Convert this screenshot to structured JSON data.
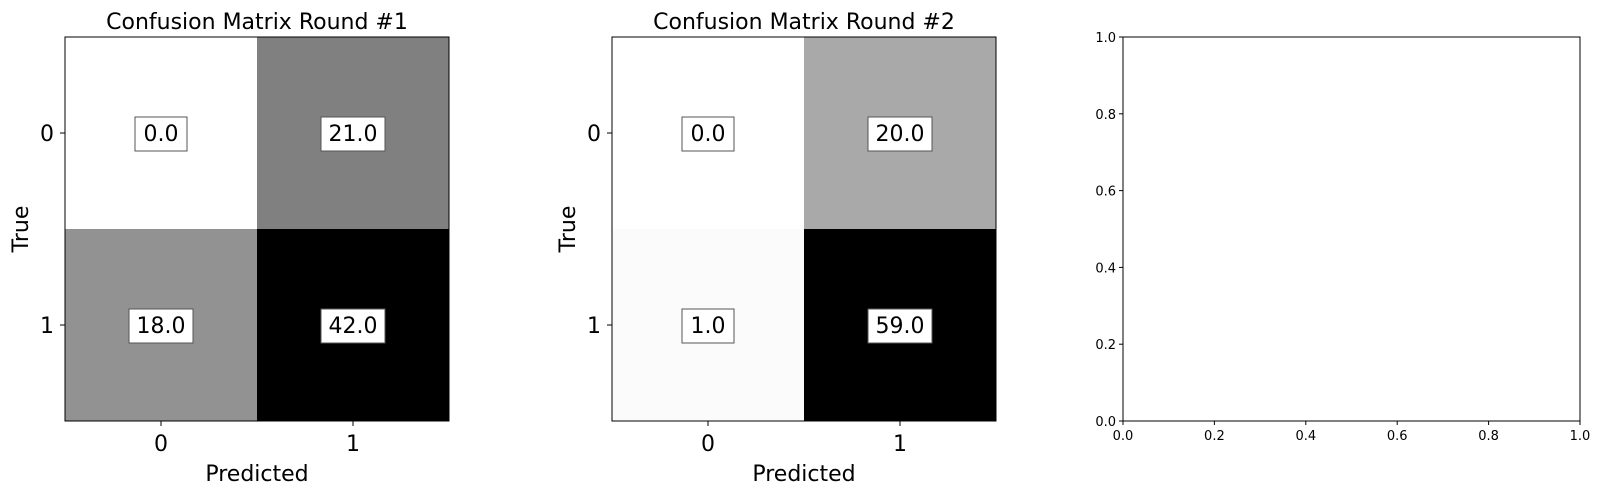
{
  "chart_data": [
    {
      "type": "heatmap",
      "title": "Confusion Matrix Round #1",
      "xlabel": "Predicted",
      "ylabel": "True",
      "x_ticks": [
        "0",
        "1"
      ],
      "y_ticks": [
        "0",
        "1"
      ],
      "colormap": "gray_r",
      "cells": [
        [
          0.0,
          21.0
        ],
        [
          18.0,
          42.0
        ]
      ],
      "cell_labels": [
        [
          "0.0",
          "21.0"
        ],
        [
          "18.0",
          "42.0"
        ]
      ]
    },
    {
      "type": "heatmap",
      "title": "Confusion Matrix Round #2",
      "xlabel": "Predicted",
      "ylabel": "True",
      "x_ticks": [
        "0",
        "1"
      ],
      "y_ticks": [
        "0",
        "1"
      ],
      "colormap": "gray_r",
      "cells": [
        [
          0.0,
          20.0
        ],
        [
          1.0,
          59.0
        ]
      ],
      "cell_labels": [
        [
          "0.0",
          "20.0"
        ],
        [
          "1.0",
          "59.0"
        ]
      ]
    },
    {
      "type": "scatter",
      "title": "",
      "xlabel": "",
      "ylabel": "",
      "xlim": [
        0.0,
        1.0
      ],
      "ylim": [
        0.0,
        1.0
      ],
      "x_ticks": [
        "0.0",
        "0.2",
        "0.4",
        "0.6",
        "0.8",
        "1.0"
      ],
      "y_ticks": [
        "0.0",
        "0.2",
        "0.4",
        "0.6",
        "0.8",
        "1.0"
      ],
      "series": []
    }
  ]
}
